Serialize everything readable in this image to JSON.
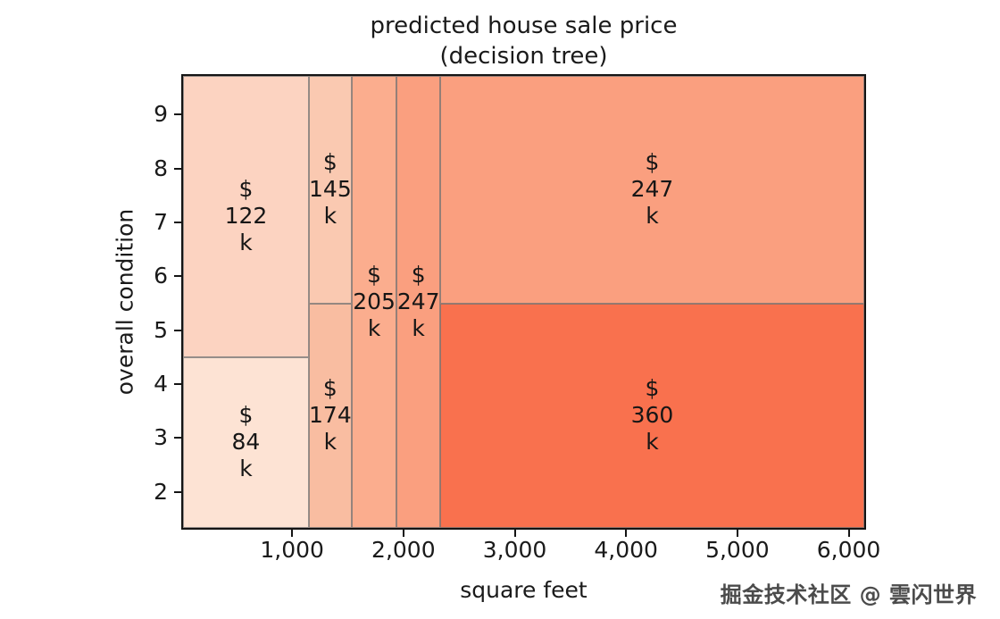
{
  "title": {
    "line1": "predicted house sale price",
    "line2": "(decision tree)"
  },
  "watermark": "掘金技术社区 @ 雲闪世界",
  "chart_data": {
    "type": "heatmap",
    "description": "Decision-tree partition plot: predicted house sale price ($k) as rectangular regions over square feet (x axis) and overall condition (y axis). Vertical splits at ~1150, ~1535, ~1940 and ~2330 sq ft; horizontal splits at condition 4.5 (left column) and 5.5.",
    "title": "predicted house sale price (decision tree)",
    "xlabel": "square feet",
    "ylabel": "overall condition",
    "xlim": [
      20,
      6140
    ],
    "ylim": [
      1.33,
      9.72
    ],
    "grid": false,
    "legend": "none",
    "x_ticks": [
      {
        "value": 1000,
        "label": "1,000"
      },
      {
        "value": 2000,
        "label": "2,000"
      },
      {
        "value": 3000,
        "label": "3,000"
      },
      {
        "value": 4000,
        "label": "4,000"
      },
      {
        "value": 5000,
        "label": "5,000"
      },
      {
        "value": 6000,
        "label": "6,000"
      }
    ],
    "y_ticks": [
      {
        "value": 2,
        "label": "2"
      },
      {
        "value": 3,
        "label": "3"
      },
      {
        "value": 4,
        "label": "4"
      },
      {
        "value": 5,
        "label": "5"
      },
      {
        "value": 6,
        "label": "6"
      },
      {
        "value": 7,
        "label": "7"
      },
      {
        "value": 8,
        "label": "8"
      },
      {
        "value": 9,
        "label": "9"
      }
    ],
    "regions": [
      {
        "name": "region-122k",
        "price_k": 122,
        "label_lines": [
          "$",
          "122",
          "k"
        ],
        "sqft_range": [
          20,
          1150
        ],
        "condition_range": [
          4.5,
          9.72
        ],
        "color": "#fcd3c1"
      },
      {
        "name": "region-84k",
        "price_k": 84,
        "label_lines": [
          "$",
          "84",
          "k"
        ],
        "sqft_range": [
          20,
          1150
        ],
        "condition_range": [
          1.33,
          4.5
        ],
        "color": "#fde3d4"
      },
      {
        "name": "region-145k",
        "price_k": 145,
        "label_lines": [
          "$",
          "145",
          "k"
        ],
        "sqft_range": [
          1150,
          1535
        ],
        "condition_range": [
          5.5,
          9.72
        ],
        "color": "#fac9b1"
      },
      {
        "name": "region-174k",
        "price_k": 174,
        "label_lines": [
          "$",
          "174",
          "k"
        ],
        "sqft_range": [
          1150,
          1535
        ],
        "condition_range": [
          1.33,
          5.5
        ],
        "color": "#f9bda1"
      },
      {
        "name": "region-205k",
        "price_k": 205,
        "label_lines": [
          "$",
          "205",
          "k"
        ],
        "sqft_range": [
          1535,
          1940
        ],
        "condition_range": [
          1.33,
          9.72
        ],
        "color": "#fbad8e"
      },
      {
        "name": "region-247k-column",
        "price_k": 247,
        "label_lines": [
          "$",
          "247",
          "k"
        ],
        "sqft_range": [
          1940,
          2330
        ],
        "condition_range": [
          1.33,
          9.72
        ],
        "color": "#fa9f7f"
      },
      {
        "name": "region-247k-wide",
        "price_k": 247,
        "label_lines": [
          "$",
          "247",
          "k"
        ],
        "sqft_range": [
          2330,
          6140
        ],
        "condition_range": [
          5.5,
          9.72
        ],
        "color": "#fa9f7f"
      },
      {
        "name": "region-360k",
        "price_k": 360,
        "label_lines": [
          "$",
          "360",
          "k"
        ],
        "sqft_range": [
          2330,
          6140
        ],
        "condition_range": [
          1.33,
          5.5
        ],
        "color": "#f9714e"
      }
    ]
  }
}
